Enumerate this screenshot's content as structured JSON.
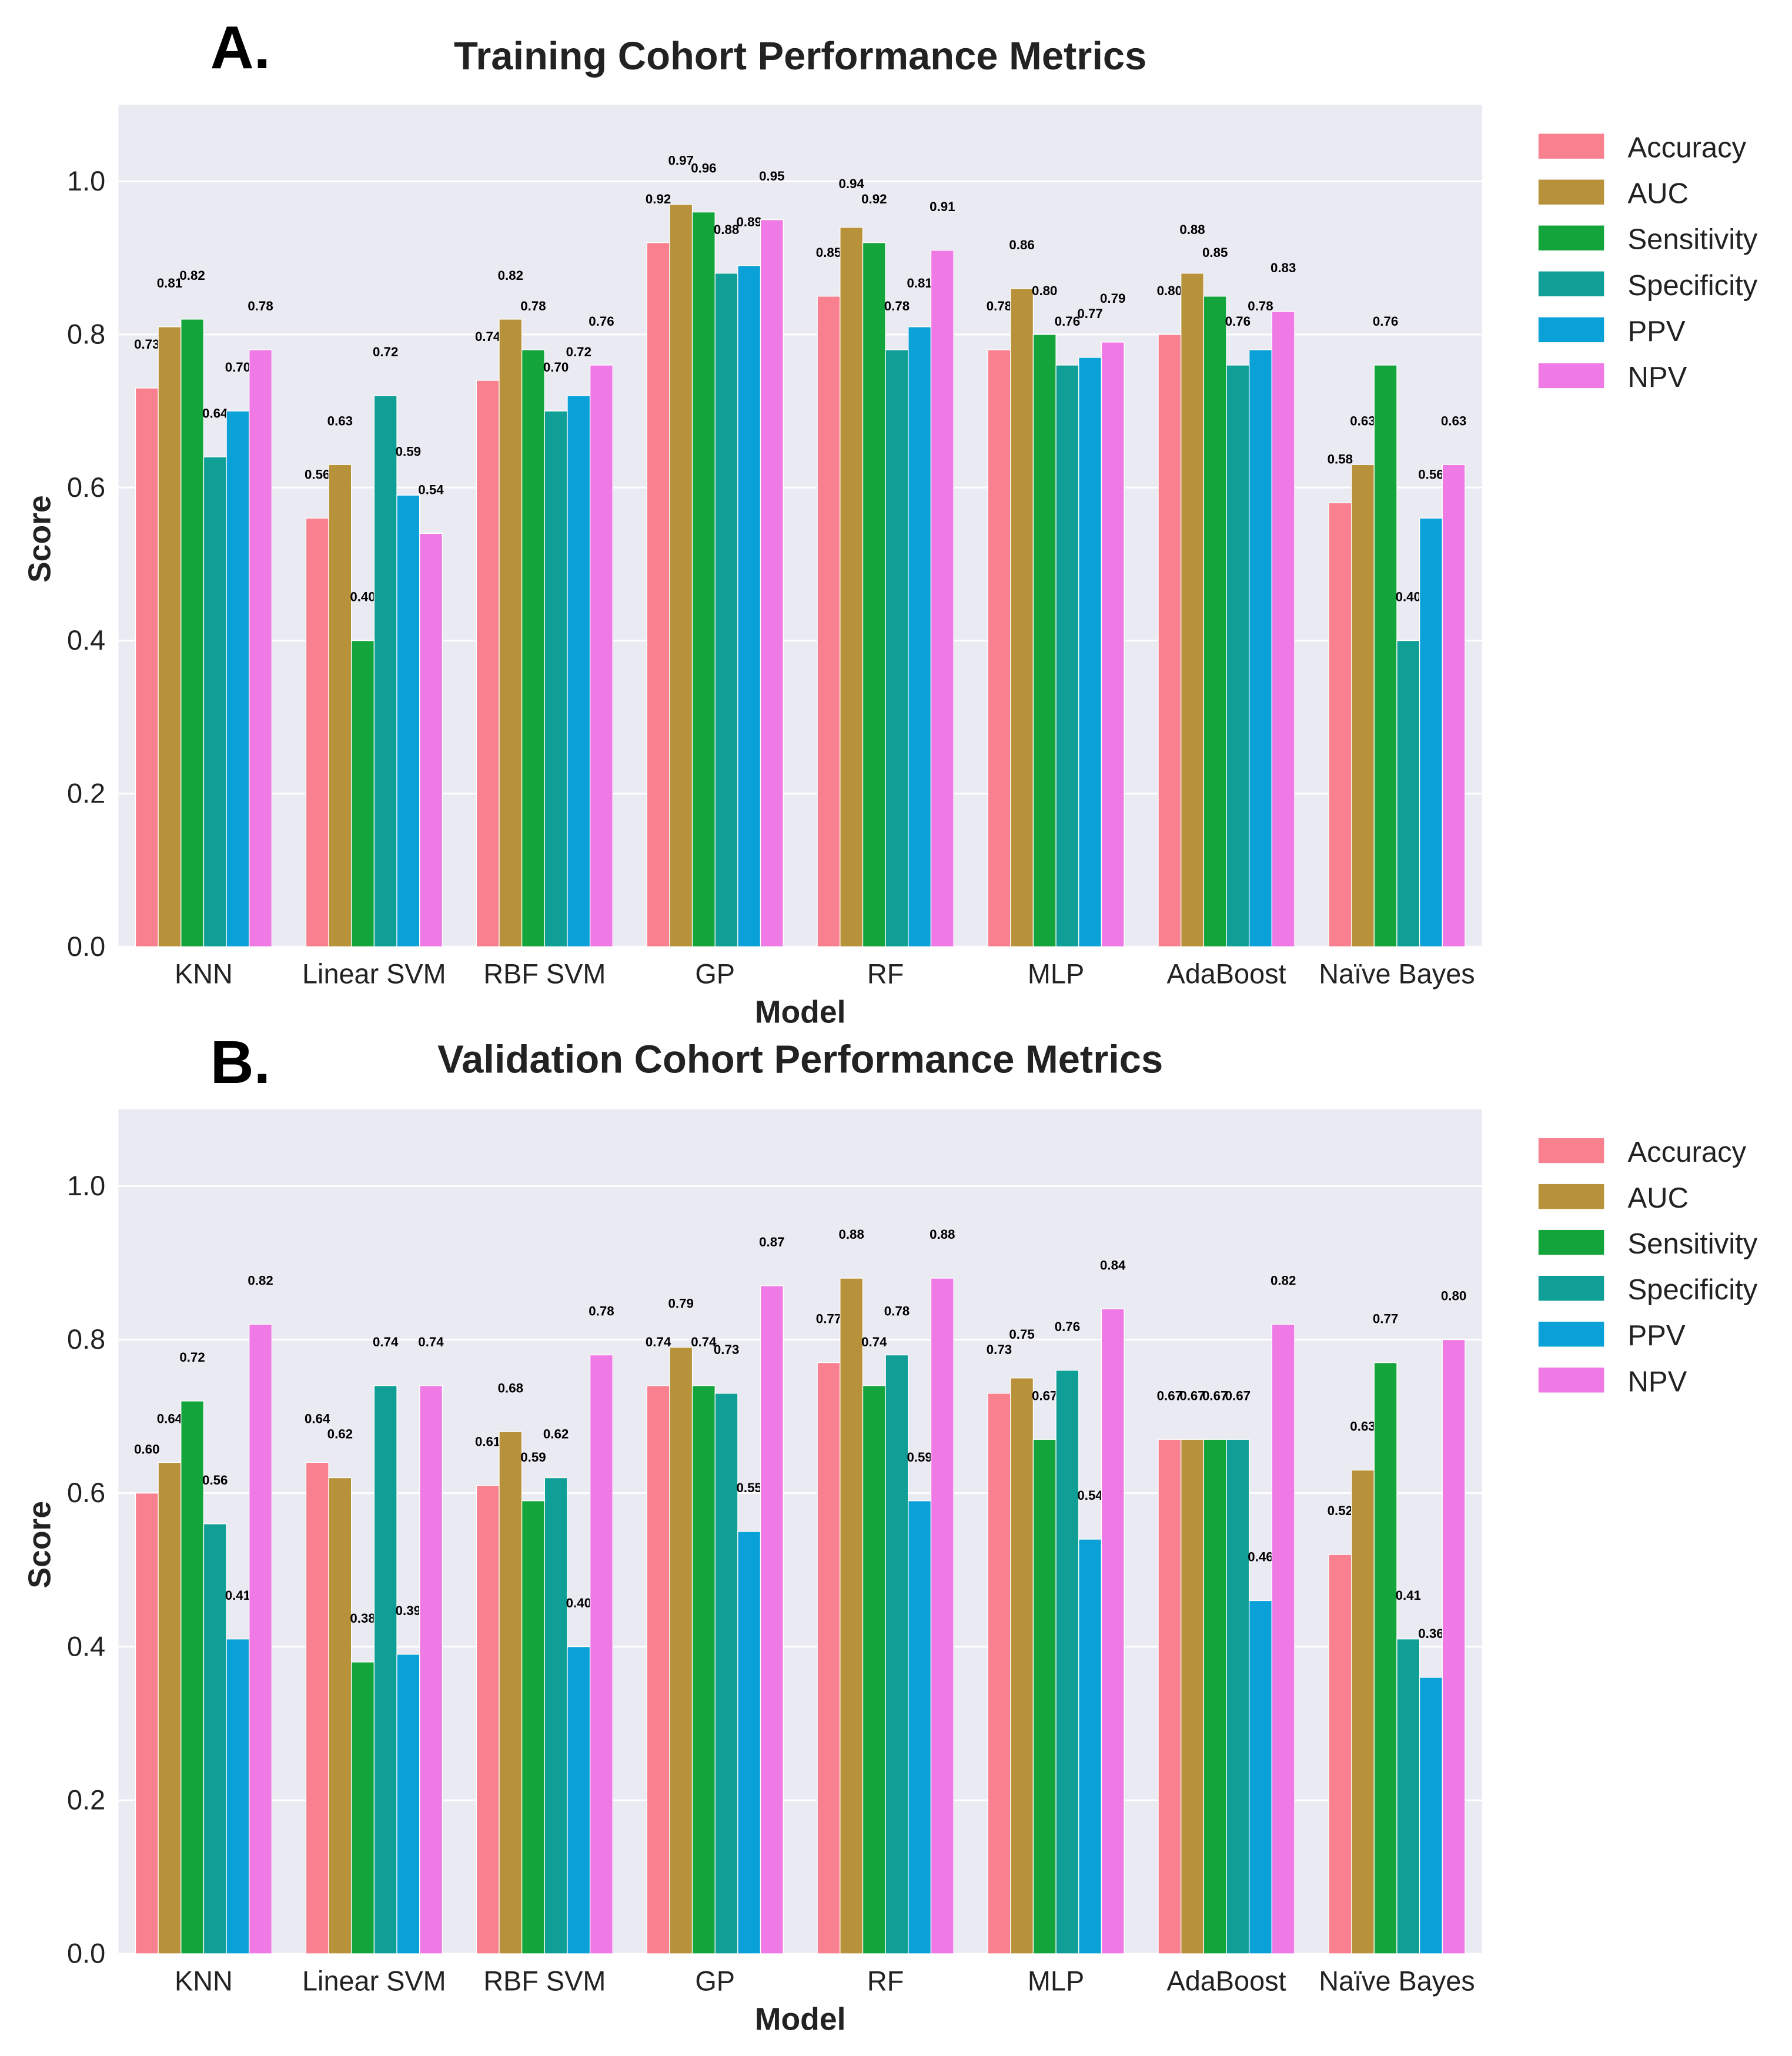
{
  "metrics": [
    "Accuracy",
    "AUC",
    "Sensitivity",
    "Specificity",
    "PPV",
    "NPV"
  ],
  "colors": [
    "#f9808e",
    "#b8923a",
    "#13a43c",
    "#0f9f96",
    "#0aa0d8",
    "#ef7ae6"
  ],
  "chart_data": [
    {
      "type": "bar",
      "panel_label": "A.",
      "title": "Training Cohort Performance Metrics",
      "xlabel": "Model",
      "ylabel": "Score",
      "ylim": [
        0,
        1.1
      ],
      "yticks": [
        0.0,
        0.2,
        0.4,
        0.6,
        0.8,
        1.0
      ],
      "grid": true,
      "legend": "right",
      "categories": [
        "KNN",
        "Linear SVM",
        "RBF SVM",
        "GP",
        "RF",
        "MLP",
        "AdaBoost",
        "Naïve Bayes"
      ],
      "series": [
        {
          "name": "Accuracy",
          "values": [
            0.73,
            0.56,
            0.74,
            0.92,
            0.85,
            0.78,
            0.8,
            0.58
          ]
        },
        {
          "name": "AUC",
          "values": [
            0.81,
            0.63,
            0.82,
            0.97,
            0.94,
            0.86,
            0.88,
            0.63
          ]
        },
        {
          "name": "Sensitivity",
          "values": [
            0.82,
            0.4,
            0.78,
            0.96,
            0.92,
            0.8,
            0.85,
            0.76
          ]
        },
        {
          "name": "Specificity",
          "values": [
            0.64,
            0.72,
            0.7,
            0.88,
            0.78,
            0.76,
            0.76,
            0.4
          ]
        },
        {
          "name": "PPV",
          "values": [
            0.7,
            0.59,
            0.72,
            0.89,
            0.81,
            0.77,
            0.78,
            0.56
          ]
        },
        {
          "name": "NPV",
          "values": [
            0.78,
            0.54,
            0.76,
            0.95,
            0.91,
            0.79,
            0.83,
            0.63
          ]
        }
      ]
    },
    {
      "type": "bar",
      "panel_label": "B.",
      "title": "Validation Cohort Performance Metrics",
      "xlabel": "Model",
      "ylabel": "Score",
      "ylim": [
        0,
        1.1
      ],
      "yticks": [
        0.0,
        0.2,
        0.4,
        0.6,
        0.8,
        1.0
      ],
      "grid": true,
      "legend": "right",
      "categories": [
        "KNN",
        "Linear SVM",
        "RBF SVM",
        "GP",
        "RF",
        "MLP",
        "AdaBoost",
        "Naïve Bayes"
      ],
      "series": [
        {
          "name": "Accuracy",
          "values": [
            0.6,
            0.64,
            0.61,
            0.74,
            0.77,
            0.73,
            0.67,
            0.52
          ]
        },
        {
          "name": "AUC",
          "values": [
            0.64,
            0.62,
            0.68,
            0.79,
            0.88,
            0.75,
            0.67,
            0.63
          ]
        },
        {
          "name": "Sensitivity",
          "values": [
            0.72,
            0.38,
            0.59,
            0.74,
            0.74,
            0.67,
            0.67,
            0.77
          ]
        },
        {
          "name": "Specificity",
          "values": [
            0.56,
            0.74,
            0.62,
            0.73,
            0.78,
            0.76,
            0.67,
            0.41
          ]
        },
        {
          "name": "PPV",
          "values": [
            0.41,
            0.39,
            0.4,
            0.55,
            0.59,
            0.54,
            0.46,
            0.36
          ]
        },
        {
          "name": "NPV",
          "values": [
            0.82,
            0.74,
            0.78,
            0.87,
            0.88,
            0.84,
            0.82,
            0.8
          ]
        }
      ]
    }
  ]
}
